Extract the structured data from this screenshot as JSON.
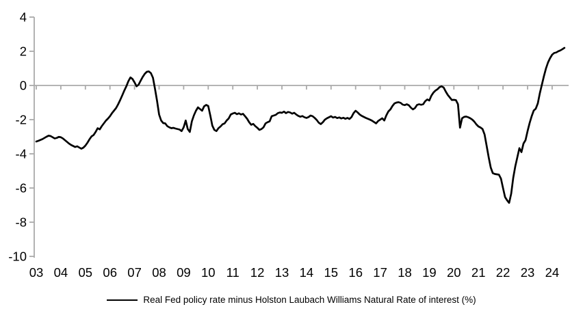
{
  "page": {
    "background_color": "#ffffff",
    "text_color": "#000000"
  },
  "chart_data": {
    "type": "line",
    "title": "",
    "legend": "Real Fed policy rate minus Holston Laubach Williams Natural Rate of interest (%)",
    "legend_position": "bottom-center",
    "series_name": "Real Fed policy rate minus Holston Laubach Williams Natural Rate of interest (%)",
    "series_color": "#000000",
    "axis_color": "#aaaaaa",
    "zero_line": true,
    "grid": false,
    "ylim": [
      -10,
      4
    ],
    "y_tick_labels": [
      "4",
      "2",
      "0",
      "-2",
      "-4",
      "-6",
      "-8",
      "-10"
    ],
    "y_tick_values": [
      4,
      2,
      0,
      -2,
      -4,
      -6,
      -8,
      -10
    ],
    "x_tick_labels": [
      "03",
      "04",
      "05",
      "06",
      "07",
      "08",
      "09",
      "10",
      "11",
      "12",
      "13",
      "14",
      "15",
      "16",
      "17",
      "18",
      "19",
      "20",
      "21",
      "22",
      "23",
      "24"
    ],
    "x_start": "2003-01",
    "x_end": "2024-07",
    "frequency": "monthly",
    "values": [
      -3.28,
      -3.24,
      -3.19,
      -3.14,
      -3.07,
      -3.0,
      -2.94,
      -2.96,
      -3.03,
      -3.1,
      -3.07,
      -3.01,
      -3.03,
      -3.1,
      -3.2,
      -3.3,
      -3.4,
      -3.48,
      -3.54,
      -3.6,
      -3.56,
      -3.63,
      -3.7,
      -3.64,
      -3.52,
      -3.35,
      -3.15,
      -2.98,
      -2.9,
      -2.72,
      -2.5,
      -2.57,
      -2.38,
      -2.22,
      -2.06,
      -1.94,
      -1.8,
      -1.62,
      -1.47,
      -1.32,
      -1.1,
      -0.85,
      -0.58,
      -0.3,
      -0.05,
      0.25,
      0.47,
      0.38,
      0.18,
      -0.05,
      0.05,
      0.28,
      0.5,
      0.68,
      0.8,
      0.82,
      0.72,
      0.45,
      -0.2,
      -0.9,
      -1.7,
      -2.05,
      -2.2,
      -2.22,
      -2.38,
      -2.45,
      -2.5,
      -2.48,
      -2.52,
      -2.55,
      -2.58,
      -2.67,
      -2.45,
      -2.05,
      -2.55,
      -2.72,
      -2.1,
      -1.75,
      -1.48,
      -1.28,
      -1.38,
      -1.48,
      -1.22,
      -1.14,
      -1.2,
      -1.75,
      -2.35,
      -2.6,
      -2.67,
      -2.5,
      -2.4,
      -2.27,
      -2.22,
      -2.05,
      -1.93,
      -1.7,
      -1.64,
      -1.6,
      -1.68,
      -1.63,
      -1.7,
      -1.66,
      -1.8,
      -1.95,
      -2.15,
      -2.3,
      -2.25,
      -2.38,
      -2.48,
      -2.6,
      -2.55,
      -2.45,
      -2.22,
      -2.15,
      -2.1,
      -1.8,
      -1.76,
      -1.72,
      -1.62,
      -1.58,
      -1.6,
      -1.53,
      -1.62,
      -1.55,
      -1.58,
      -1.65,
      -1.6,
      -1.7,
      -1.78,
      -1.83,
      -1.79,
      -1.86,
      -1.9,
      -1.85,
      -1.76,
      -1.8,
      -1.9,
      -2.02,
      -2.18,
      -2.26,
      -2.15,
      -2.0,
      -1.92,
      -1.86,
      -1.8,
      -1.88,
      -1.84,
      -1.91,
      -1.87,
      -1.93,
      -1.89,
      -1.95,
      -1.9,
      -1.96,
      -1.85,
      -1.62,
      -1.48,
      -1.58,
      -1.7,
      -1.78,
      -1.84,
      -1.9,
      -1.95,
      -2.0,
      -2.06,
      -2.14,
      -2.22,
      -2.08,
      -2.0,
      -1.92,
      -2.05,
      -1.75,
      -1.52,
      -1.4,
      -1.2,
      -1.05,
      -1.0,
      -0.98,
      -1.02,
      -1.12,
      -1.15,
      -1.1,
      -1.16,
      -1.3,
      -1.4,
      -1.32,
      -1.14,
      -1.1,
      -1.13,
      -1.1,
      -0.92,
      -0.82,
      -0.88,
      -0.6,
      -0.42,
      -0.3,
      -0.22,
      -0.1,
      -0.05,
      -0.12,
      -0.35,
      -0.55,
      -0.7,
      -0.85,
      -0.84,
      -0.86,
      -1.1,
      -2.47,
      -1.92,
      -1.84,
      -1.82,
      -1.86,
      -1.92,
      -2.0,
      -2.12,
      -2.28,
      -2.4,
      -2.46,
      -2.55,
      -2.87,
      -3.53,
      -4.2,
      -4.8,
      -5.13,
      -5.18,
      -5.2,
      -5.22,
      -5.45,
      -6.0,
      -6.53,
      -6.72,
      -6.87,
      -6.33,
      -5.4,
      -4.73,
      -4.2,
      -3.67,
      -3.9,
      -3.4,
      -3.2,
      -2.67,
      -2.2,
      -1.8,
      -1.47,
      -1.36,
      -1.05,
      -0.45,
      0.05,
      0.55,
      1.0,
      1.35,
      1.6,
      1.8,
      1.9,
      1.93,
      2.0,
      2.05,
      2.12,
      2.2
    ]
  }
}
